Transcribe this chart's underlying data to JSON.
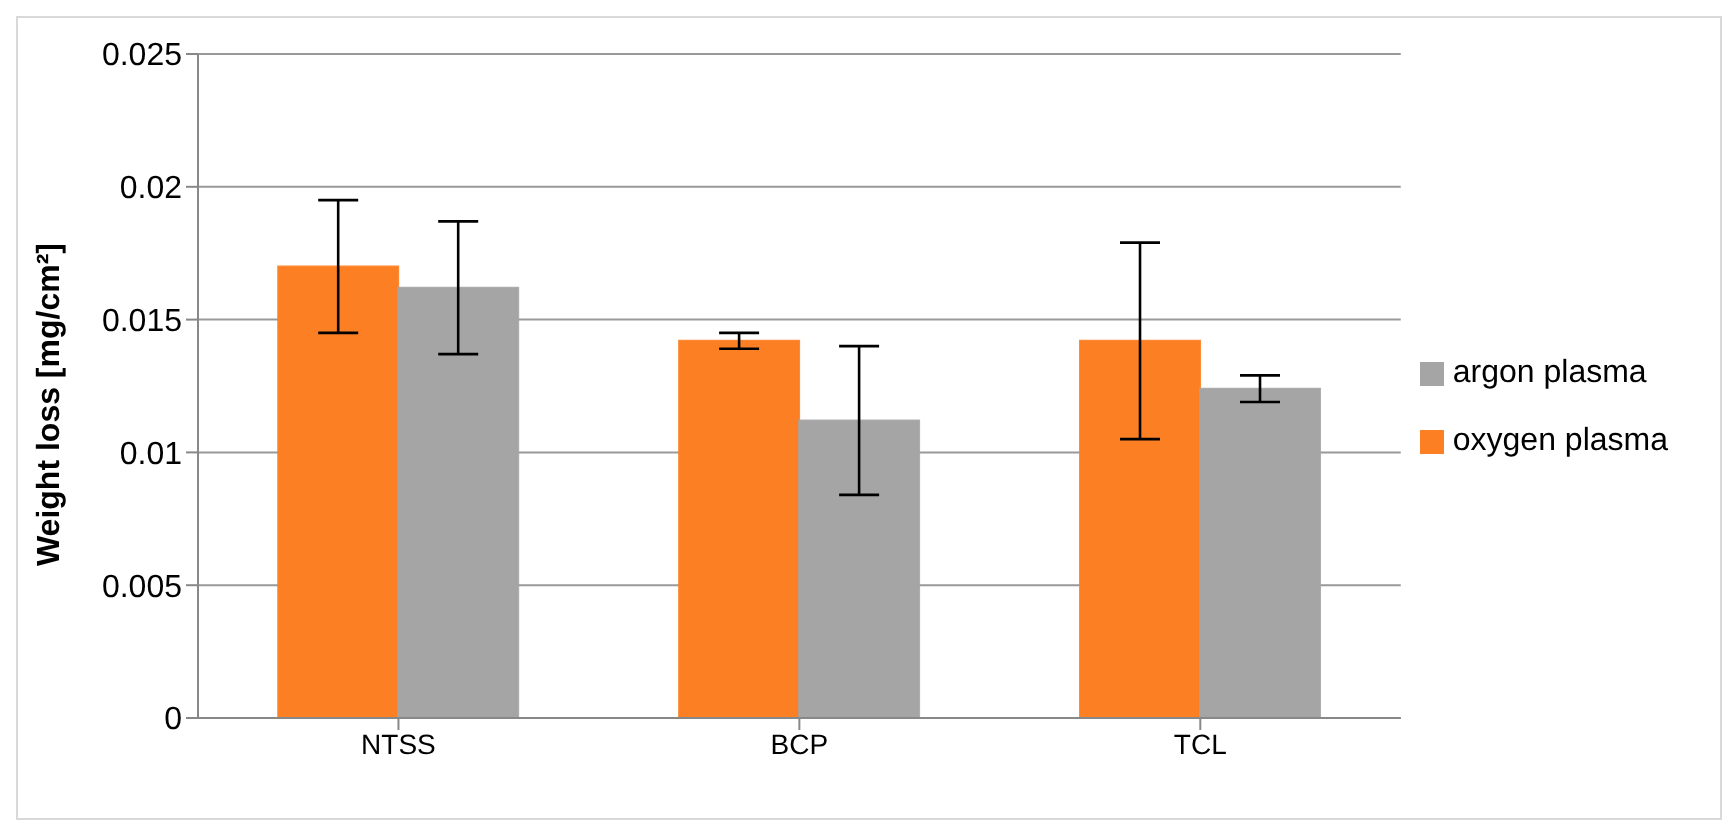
{
  "chart_data": {
    "type": "bar",
    "ylabel": "Weight loss [mg/cm²]",
    "categories": [
      "NTSS",
      "BCP",
      "TCL"
    ],
    "series": [
      {
        "name": "oxygen plasma",
        "color": "#fd7f23",
        "values": [
          0.017,
          0.0142,
          0.0142
        ],
        "errors": [
          0.0025,
          0.0003,
          0.0037
        ]
      },
      {
        "name": "argon plasma",
        "color": "#a5a5a5",
        "values": [
          0.0162,
          0.0112,
          0.0124
        ],
        "errors": [
          0.0025,
          0.0028,
          0.0005
        ]
      }
    ],
    "ylim": [
      0,
      0.025
    ],
    "yticks": [
      0,
      0.005,
      0.01,
      0.015,
      0.02,
      0.025
    ],
    "grid": "y",
    "legend": "right"
  }
}
